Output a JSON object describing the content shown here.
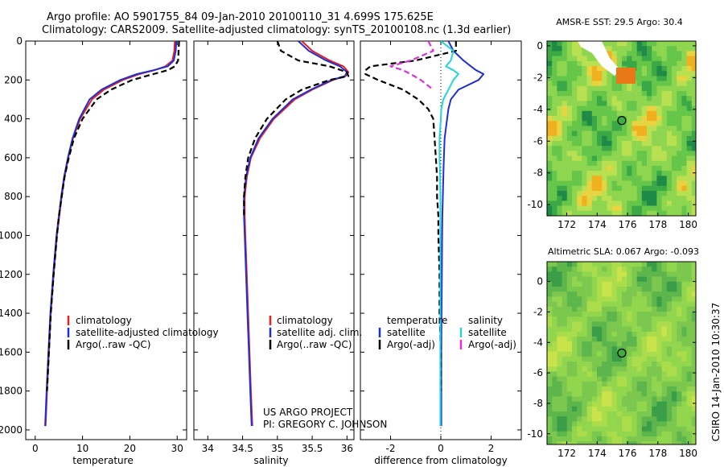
{
  "header": {
    "title_line1": "Argo profile: AO 5901755_84 09-Jan-2010 20100110_31 4.699S 175.625E",
    "title_line2": "Climatology: CARS2009. Satellite-adjusted climatology: synTS_20100108.nc (1.3d earlier)"
  },
  "credit": {
    "line1": "US ARGO PROJECT",
    "line2": "PI: GREGORY C. JOHNSON"
  },
  "side_stamp": "CSIRO 14-Jan-2010 10:30:37",
  "colors": {
    "climatology": "#e8201c",
    "satellite": "#1f2fd8",
    "argo": "#000000",
    "satellite_sal": "#22d6d8",
    "argo_sal": "#e030d8",
    "map_green": "#88d84a"
  },
  "chart_data": [
    {
      "type": "line",
      "id": "temperature",
      "xlabel": "temperature",
      "ylabel": "",
      "xlim": [
        -2,
        32
      ],
      "ylim": [
        2050,
        0
      ],
      "yticks": [
        0,
        200,
        400,
        600,
        800,
        1000,
        1200,
        1400,
        1600,
        1800,
        2000
      ],
      "xticks": [
        0,
        10,
        20,
        30
      ],
      "depth": [
        0,
        50,
        100,
        130,
        150,
        170,
        200,
        250,
        300,
        400,
        500,
        600,
        700,
        800,
        900,
        1000,
        1200,
        1400,
        1600,
        1800,
        1980
      ],
      "series": [
        {
          "name": "climatology",
          "style": "solid",
          "values": [
            29.5,
            29.4,
            29.0,
            27.5,
            25.2,
            22.0,
            18.5,
            14.5,
            12.0,
            9.5,
            8.0,
            7.0,
            6.2,
            5.6,
            5.1,
            4.6,
            3.9,
            3.3,
            2.9,
            2.5,
            2.2
          ]
        },
        {
          "name": "satellite-adjusted climatology",
          "style": "solid",
          "values": [
            29.8,
            29.7,
            29.3,
            28.0,
            25.0,
            21.5,
            18.0,
            14.0,
            11.5,
            9.3,
            7.9,
            6.9,
            6.1,
            5.5,
            5.0,
            4.5,
            3.8,
            3.2,
            2.8,
            2.4,
            2.1
          ]
        },
        {
          "name": "Argo(..raw -QC)",
          "style": "dashed",
          "values": [
            30.4,
            30.3,
            30.2,
            29.5,
            28.0,
            25.0,
            20.5,
            16.0,
            13.0,
            10.0,
            8.2,
            7.1,
            6.2,
            5.6,
            5.0,
            4.6,
            3.9,
            3.3,
            2.9,
            2.5
          ]
        }
      ],
      "legend": {
        "position": "lower-center",
        "entries": [
          "climatology",
          "satellite-adjusted climatology",
          "Argo(..raw -QC)"
        ]
      }
    },
    {
      "type": "line",
      "id": "salinity",
      "xlabel": "salinity",
      "xlim": [
        33.8,
        36.1
      ],
      "ylim": [
        2050,
        0
      ],
      "xticks": [
        34,
        34.5,
        35,
        35.5,
        36
      ],
      "depth": [
        0,
        50,
        100,
        130,
        160,
        180,
        200,
        250,
        300,
        400,
        500,
        600,
        700,
        800,
        900,
        1000,
        1200,
        1400,
        1600,
        1800,
        1980
      ],
      "series": [
        {
          "name": "climatology",
          "style": "solid",
          "values": [
            35.35,
            35.5,
            35.75,
            35.95,
            36.02,
            35.98,
            35.8,
            35.5,
            35.25,
            34.95,
            34.75,
            34.62,
            34.56,
            34.53,
            34.53,
            34.54,
            34.56,
            34.58,
            34.6,
            34.62,
            34.64
          ]
        },
        {
          "name": "satellite adj. clim.",
          "style": "solid",
          "values": [
            35.3,
            35.45,
            35.7,
            35.9,
            36.0,
            35.97,
            35.78,
            35.48,
            35.22,
            34.93,
            34.73,
            34.61,
            34.55,
            34.52,
            34.52,
            34.53,
            34.55,
            34.57,
            34.59,
            34.61,
            34.63
          ]
        },
        {
          "name": "Argo(..raw -QC)",
          "style": "dashed",
          "values": [
            35.0,
            35.05,
            35.3,
            35.75,
            36.0,
            36.02,
            35.75,
            35.35,
            35.12,
            34.85,
            34.68,
            34.58,
            34.54,
            34.52,
            34.52
          ]
        }
      ],
      "legend": {
        "position": "lower-center",
        "entries": [
          "climatology",
          "satellite adj. clim.",
          "Argo(..raw -QC)"
        ]
      }
    },
    {
      "type": "line",
      "id": "difference",
      "xlabel": "difference from climatology",
      "xlim": [
        -3.2,
        3.2
      ],
      "ylim": [
        2050,
        0
      ],
      "xticks": [
        -2,
        0,
        2
      ],
      "depth": [
        0,
        50,
        100,
        130,
        150,
        170,
        200,
        250,
        300,
        350,
        400,
        500,
        600,
        700,
        800,
        900,
        1000,
        1200,
        1400,
        1600,
        1800,
        1980
      ],
      "series": [
        {
          "name": "temperature satellite",
          "style": "solid",
          "values": [
            0.3,
            0.5,
            0.9,
            1.2,
            1.4,
            1.7,
            1.5,
            0.7,
            0.4,
            0.3,
            0.25,
            0.15,
            0.12,
            0.1,
            0.08,
            0.06,
            0.05,
            0.04,
            0.03,
            0.02,
            0.02,
            0.02
          ]
        },
        {
          "name": "temperature Argo(-adj)",
          "style": "dashed",
          "values": [
            0.6,
            0.6,
            -1.0,
            -2.8,
            -3.0,
            -3.0,
            -2.5,
            -1.5,
            -0.9,
            -0.5,
            -0.3,
            -0.25,
            -0.2,
            -0.15,
            -0.15,
            -0.1,
            -0.1,
            -0.05,
            -0.05,
            0.0,
            0.0
          ]
        },
        {
          "name": "salinity satellite",
          "style": "solid",
          "values": [
            0.0,
            0.5,
            0.4,
            0.2,
            0.5,
            0.7,
            0.5,
            0.3,
            0.1,
            0.02,
            0.0,
            -0.05,
            -0.05,
            -0.03,
            -0.02,
            -0.02,
            -0.02,
            -0.02,
            -0.02,
            -0.02,
            -0.02,
            -0.02
          ]
        },
        {
          "name": "salinity Argo(-adj)",
          "style": "dashed",
          "values": [
            -0.5,
            -0.3,
            -1.2,
            -2.0,
            -1.5,
            -1.2,
            -0.8,
            -0.3
          ]
        }
      ],
      "legend": {
        "position": "lower-center",
        "entries": [
          "temperature",
          "satellite",
          "Argo(-adj)",
          "salinity",
          "satellite",
          "Argo(-adj)"
        ]
      }
    },
    {
      "type": "heatmap",
      "id": "sst_map",
      "title": "AMSR-E SST: 29.5 Argo: 30.4",
      "xlim": [
        170.7,
        180.5
      ],
      "ylim": [
        -10.7,
        0.3
      ],
      "xticks": [
        172,
        174,
        176,
        178,
        180
      ],
      "yticks": [
        0,
        -2,
        -4,
        -6,
        -8,
        -10
      ],
      "argo_position": {
        "lon": 175.625,
        "lat": -4.699
      }
    },
    {
      "type": "heatmap",
      "id": "sla_map",
      "title": "Altimetric SLA: 0.067 Argo: -0.093",
      "xlim": [
        170.7,
        180.5
      ],
      "ylim": [
        -10.7,
        1.3
      ],
      "xticks": [
        172,
        174,
        176,
        178,
        180
      ],
      "yticks": [
        0,
        -2,
        -4,
        -6,
        -8,
        -10
      ],
      "argo_position": {
        "lon": 175.625,
        "lat": -4.699
      }
    }
  ]
}
